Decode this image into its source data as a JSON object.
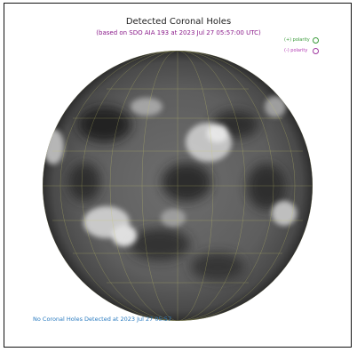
{
  "header": {
    "title": "Detected Coronal Holes",
    "subtitle": "(based on SDO AIA 193 at 2023 Jul 27 05:57:00 UTC)"
  },
  "legend": {
    "items": [
      {
        "label": "(+) polarity",
        "color": "#3a9a3a"
      },
      {
        "label": "(-) polarity",
        "color": "#a03aa0"
      }
    ]
  },
  "status": {
    "message": "No Coronal Holes Detected at 2023 Jul 27 05:57"
  }
}
